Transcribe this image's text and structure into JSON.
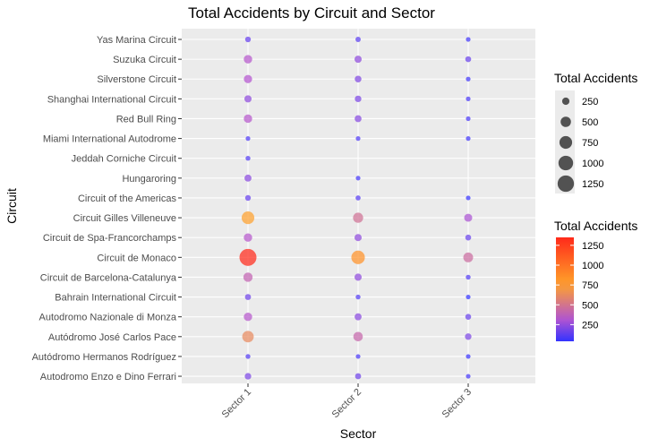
{
  "chart_data": {
    "type": "scatter",
    "title": "Total Accidents by Circuit and Sector",
    "xlabel": "Sector",
    "ylabel": "Circuit",
    "x_categories": [
      "Sector 1",
      "Sector 2",
      "Sector 3"
    ],
    "y_categories": [
      "Autodromo Enzo e Dino Ferrari",
      "Autódromo Hermanos Rodríguez",
      "Autódromo José Carlos Pace",
      "Autodromo Nazionale di Monza",
      "Bahrain International Circuit",
      "Circuit de Barcelona-Catalunya",
      "Circuit de Monaco",
      "Circuit de Spa-Francorchamps",
      "Circuit Gilles Villeneuve",
      "Circuit of the Americas",
      "Hungaroring",
      "Jeddah Corniche Circuit",
      "Miami International Autodrome",
      "Red Bull Ring",
      "Shanghai International Circuit",
      "Silverstone Circuit",
      "Suzuka Circuit",
      "Yas Marina Circuit"
    ],
    "points": [
      {
        "circuit": "Autodromo Enzo e Dino Ferrari",
        "sector": "Sector 1",
        "value": 200
      },
      {
        "circuit": "Autodromo Enzo e Dino Ferrari",
        "sector": "Sector 2",
        "value": 170
      },
      {
        "circuit": "Autodromo Enzo e Dino Ferrari",
        "sector": "Sector 3",
        "value": 80
      },
      {
        "circuit": "Autódromo Hermanos Rodríguez",
        "sector": "Sector 1",
        "value": 110
      },
      {
        "circuit": "Autódromo Hermanos Rodríguez",
        "sector": "Sector 2",
        "value": 90
      },
      {
        "circuit": "Autódromo Hermanos Rodríguez",
        "sector": "Sector 3",
        "value": 55
      },
      {
        "circuit": "Autódromo José Carlos Pace",
        "sector": "Sector 1",
        "value": 620
      },
      {
        "circuit": "Autódromo José Carlos Pace",
        "sector": "Sector 2",
        "value": 420
      },
      {
        "circuit": "Autódromo José Carlos Pace",
        "sector": "Sector 3",
        "value": 200
      },
      {
        "circuit": "Autodromo Nazionale di Monza",
        "sector": "Sector 1",
        "value": 330
      },
      {
        "circuit": "Autodromo Nazionale di Monza",
        "sector": "Sector 2",
        "value": 230
      },
      {
        "circuit": "Autodromo Nazionale di Monza",
        "sector": "Sector 3",
        "value": 160
      },
      {
        "circuit": "Bahrain International Circuit",
        "sector": "Sector 1",
        "value": 170
      },
      {
        "circuit": "Bahrain International Circuit",
        "sector": "Sector 2",
        "value": 110
      },
      {
        "circuit": "Bahrain International Circuit",
        "sector": "Sector 3",
        "value": 40
      },
      {
        "circuit": "Circuit de Barcelona-Catalunya",
        "sector": "Sector 1",
        "value": 400
      },
      {
        "circuit": "Circuit de Barcelona-Catalunya",
        "sector": "Sector 2",
        "value": 240
      },
      {
        "circuit": "Circuit de Barcelona-Catalunya",
        "sector": "Sector 3",
        "value": 110
      },
      {
        "circuit": "Circuit de Monaco",
        "sector": "Sector 1",
        "value": 1350
      },
      {
        "circuit": "Circuit de Monaco",
        "sector": "Sector 2",
        "value": 850
      },
      {
        "circuit": "Circuit de Monaco",
        "sector": "Sector 3",
        "value": 450
      },
      {
        "circuit": "Circuit de Spa-Francorchamps",
        "sector": "Sector 1",
        "value": 330
      },
      {
        "circuit": "Circuit de Spa-Francorchamps",
        "sector": "Sector 2",
        "value": 240
      },
      {
        "circuit": "Circuit de Spa-Francorchamps",
        "sector": "Sector 3",
        "value": 160
      },
      {
        "circuit": "Circuit Gilles Villeneuve",
        "sector": "Sector 1",
        "value": 750
      },
      {
        "circuit": "Circuit Gilles Villeneuve",
        "sector": "Sector 2",
        "value": 480
      },
      {
        "circuit": "Circuit Gilles Villeneuve",
        "sector": "Sector 3",
        "value": 300
      },
      {
        "circuit": "Circuit of the Americas",
        "sector": "Sector 1",
        "value": 150
      },
      {
        "circuit": "Circuit of the Americas",
        "sector": "Sector 2",
        "value": 120
      },
      {
        "circuit": "Circuit of the Americas",
        "sector": "Sector 3",
        "value": 50
      },
      {
        "circuit": "Hungaroring",
        "sector": "Sector 1",
        "value": 230
      },
      {
        "circuit": "Hungaroring",
        "sector": "Sector 2",
        "value": 80
      },
      {
        "circuit": "Jeddah Corniche Circuit",
        "sector": "Sector 1",
        "value": 110
      },
      {
        "circuit": "Miami International Autodrome",
        "sector": "Sector 1",
        "value": 100
      },
      {
        "circuit": "Miami International Autodrome",
        "sector": "Sector 2",
        "value": 100
      },
      {
        "circuit": "Miami International Autodrome",
        "sector": "Sector 3",
        "value": 70
      },
      {
        "circuit": "Red Bull Ring",
        "sector": "Sector 1",
        "value": 330
      },
      {
        "circuit": "Red Bull Ring",
        "sector": "Sector 2",
        "value": 220
      },
      {
        "circuit": "Red Bull Ring",
        "sector": "Sector 3",
        "value": 90
      },
      {
        "circuit": "Shanghai International Circuit",
        "sector": "Sector 1",
        "value": 240
      },
      {
        "circuit": "Shanghai International Circuit",
        "sector": "Sector 2",
        "value": 200
      },
      {
        "circuit": "Shanghai International Circuit",
        "sector": "Sector 3",
        "value": 90
      },
      {
        "circuit": "Silverstone Circuit",
        "sector": "Sector 1",
        "value": 320
      },
      {
        "circuit": "Silverstone Circuit",
        "sector": "Sector 2",
        "value": 210
      },
      {
        "circuit": "Silverstone Circuit",
        "sector": "Sector 3",
        "value": 70
      },
      {
        "circuit": "Suzuka Circuit",
        "sector": "Sector 1",
        "value": 330
      },
      {
        "circuit": "Suzuka Circuit",
        "sector": "Sector 2",
        "value": 240
      },
      {
        "circuit": "Suzuka Circuit",
        "sector": "Sector 3",
        "value": 160
      },
      {
        "circuit": "Yas Marina Circuit",
        "sector": "Sector 1",
        "value": 150
      },
      {
        "circuit": "Yas Marina Circuit",
        "sector": "Sector 2",
        "value": 130
      },
      {
        "circuit": "Yas Marina Circuit",
        "sector": "Sector 3",
        "value": 70
      }
    ],
    "size_legend": {
      "title": "Total Accidents",
      "breaks": [
        250,
        500,
        750,
        1000,
        1250
      ],
      "labels": [
        "250",
        "500",
        "750",
        "1000",
        "1250"
      ]
    },
    "color_legend": {
      "title": "Total Accidents",
      "breaks": [
        250,
        500,
        750,
        1000,
        1250
      ],
      "labels": [
        "250",
        "500",
        "750",
        "1000",
        "1250"
      ],
      "range": [
        40,
        1350
      ]
    },
    "colors": {
      "low": "#3333ff",
      "mid": "#b455d0",
      "high_mid": "#ffa32a",
      "high": "#ff2a1a",
      "panel_background": "#ebebeb",
      "grid": "#ffffff"
    },
    "grid": true,
    "legend_position": "right"
  }
}
